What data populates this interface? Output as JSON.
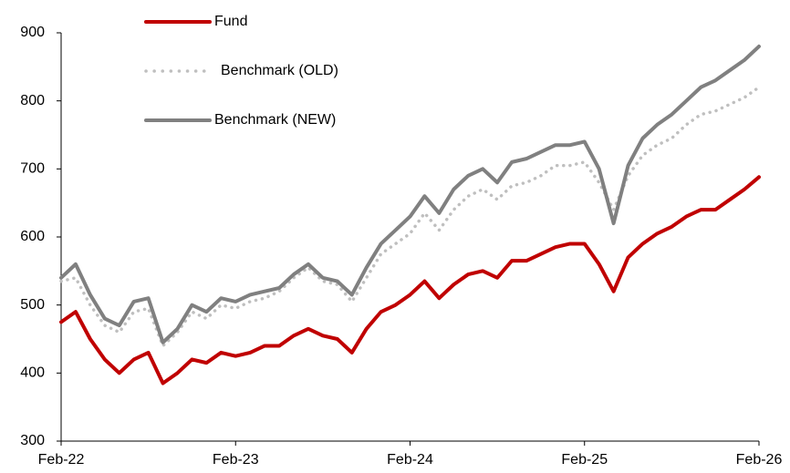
{
  "chart_data": {
    "type": "line",
    "categories": [
      "Feb-22",
      null,
      null,
      null,
      null,
      null,
      null,
      null,
      null,
      null,
      null,
      null,
      "Feb-23",
      null,
      null,
      null,
      null,
      null,
      null,
      null,
      null,
      null,
      null,
      null,
      "Feb-24",
      null,
      null,
      null,
      null,
      null,
      null,
      null,
      null,
      null,
      null,
      null,
      "Feb-25",
      null,
      null,
      null,
      null,
      null,
      null,
      null,
      null,
      null,
      null,
      null,
      "Feb-26"
    ],
    "series": [
      {
        "name": "Fund",
        "color": "#c00000",
        "style": "solid",
        "values": [
          475,
          490,
          450,
          420,
          400,
          420,
          430,
          385,
          400,
          420,
          415,
          430,
          425,
          430,
          440,
          440,
          455,
          465,
          455,
          450,
          430,
          465,
          490,
          500,
          515,
          535,
          510,
          530,
          545,
          550,
          540,
          565,
          565,
          575,
          585,
          590,
          590,
          560,
          520,
          570,
          590,
          605,
          615,
          630,
          640,
          640,
          655,
          670,
          688
        ]
      },
      {
        "name": "Benchmark (OLD)",
        "color": "#bfbfbf",
        "style": "dotted",
        "values": [
          535,
          540,
          500,
          470,
          460,
          490,
          495,
          440,
          460,
          490,
          480,
          500,
          495,
          505,
          510,
          520,
          540,
          555,
          535,
          530,
          505,
          540,
          575,
          590,
          605,
          635,
          610,
          640,
          660,
          670,
          655,
          675,
          680,
          690,
          705,
          705,
          710,
          680,
          640,
          690,
          720,
          735,
          745,
          765,
          780,
          785,
          795,
          805,
          820
        ]
      },
      {
        "name": "Benchmark (NEW)",
        "color": "#808080",
        "style": "solid",
        "values": [
          540,
          560,
          515,
          480,
          470,
          505,
          510,
          445,
          465,
          500,
          490,
          510,
          505,
          515,
          520,
          525,
          545,
          560,
          540,
          535,
          515,
          555,
          590,
          610,
          630,
          660,
          635,
          670,
          690,
          700,
          680,
          710,
          715,
          725,
          735,
          735,
          740,
          700,
          620,
          705,
          745,
          765,
          780,
          800,
          820,
          830,
          845,
          860,
          880
        ]
      }
    ],
    "ylim": [
      300,
      900
    ],
    "yticks": [
      300,
      400,
      500,
      600,
      700,
      800,
      900
    ],
    "grid": false
  }
}
